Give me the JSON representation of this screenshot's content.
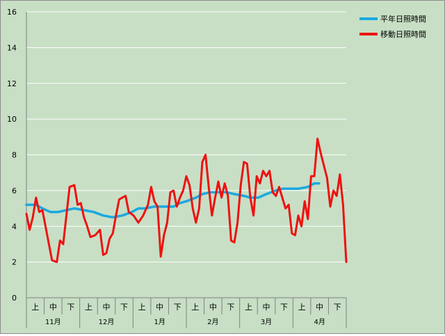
{
  "chart_data": {
    "type": "line",
    "y_axis": {
      "min": 0,
      "max": 16,
      "ticks": [
        0,
        2,
        4,
        6,
        8,
        10,
        12,
        14,
        16
      ]
    },
    "x_axis": {
      "months": [
        "11月",
        "12月",
        "1月",
        "2月",
        "3月",
        "4月"
      ],
      "dekads": [
        "上",
        "中",
        "下"
      ]
    },
    "grid": "horizontal",
    "legend": "top-right",
    "series": [
      {
        "name": "平年日照時間",
        "color": "#1aa9e0",
        "x": [
          0,
          6,
          10,
          15,
          20,
          25,
          30,
          36,
          42,
          48,
          54,
          60,
          66,
          70,
          74,
          80,
          86,
          92,
          96,
          100,
          106,
          110,
          115,
          120,
          125,
          130,
          136,
          140,
          145,
          150,
          156,
          160,
          166,
          170,
          176,
          180,
          183
        ],
        "values": [
          5.2,
          5.2,
          5.0,
          4.8,
          4.8,
          4.9,
          5.0,
          4.9,
          4.8,
          4.6,
          4.5,
          4.6,
          4.8,
          5.0,
          5.0,
          5.1,
          5.1,
          5.1,
          5.3,
          5.4,
          5.6,
          5.8,
          5.9,
          5.9,
          5.9,
          5.8,
          5.7,
          5.6,
          5.6,
          5.8,
          6.0,
          6.1,
          6.1,
          6.1,
          6.2,
          6.4,
          6.4
        ]
      },
      {
        "name": "移動日照時間",
        "color": "#ee1111",
        "x": [
          0,
          2,
          4,
          6,
          8,
          10,
          13,
          16,
          19,
          21,
          23,
          25,
          27,
          30,
          32,
          34,
          36,
          38,
          40,
          43,
          46,
          48,
          50,
          52,
          54,
          56,
          58,
          60,
          62,
          64,
          67,
          70,
          73,
          76,
          78,
          80,
          82,
          84,
          86,
          88,
          90,
          92,
          94,
          96,
          98,
          100,
          102,
          104,
          106,
          108,
          110,
          112,
          114,
          116,
          118,
          120,
          122,
          124,
          126,
          128,
          130,
          132,
          134,
          136,
          138,
          140,
          142,
          144,
          146,
          148,
          150,
          152,
          154,
          156,
          158,
          160,
          162,
          164,
          166,
          168,
          170,
          172,
          174,
          176,
          178,
          180,
          182,
          184,
          186,
          188,
          190,
          192,
          194,
          196,
          198,
          200
        ],
        "values": [
          4.7,
          3.8,
          4.5,
          5.6,
          4.8,
          4.9,
          3.5,
          2.1,
          2.0,
          3.2,
          3.0,
          4.6,
          6.2,
          6.3,
          5.2,
          5.3,
          4.5,
          4.0,
          3.4,
          3.5,
          3.8,
          2.4,
          2.5,
          3.3,
          3.6,
          4.6,
          5.5,
          5.6,
          5.7,
          4.8,
          4.6,
          4.2,
          4.6,
          5.2,
          6.2,
          5.4,
          5.1,
          2.3,
          3.5,
          4.2,
          5.9,
          6.0,
          5.1,
          5.6,
          6.0,
          6.8,
          6.3,
          5.0,
          4.2,
          5.0,
          7.6,
          8.0,
          6.2,
          4.6,
          5.6,
          6.5,
          5.6,
          6.4,
          5.7,
          3.2,
          3.1,
          4.2,
          6.3,
          7.6,
          7.5,
          5.6,
          4.6,
          6.8,
          6.4,
          7.1,
          6.8,
          7.1,
          5.9,
          5.7,
          6.2,
          5.6,
          5.0,
          5.2,
          3.6,
          3.5,
          4.6,
          4.0,
          5.4,
          4.4,
          6.8,
          6.8,
          8.9,
          8.1,
          7.4,
          6.7,
          5.1,
          6.0,
          5.7,
          6.9,
          5.2,
          2.0
        ]
      }
    ]
  }
}
